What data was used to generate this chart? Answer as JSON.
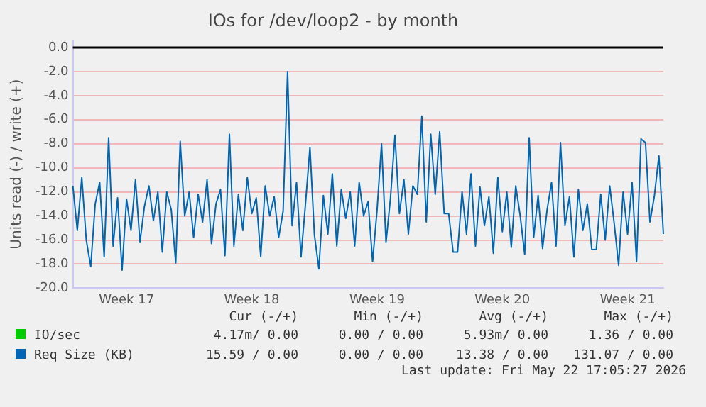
{
  "chart_data": {
    "type": "line",
    "title": "IOs for /dev/loop2 - by month",
    "ylabel": "Units read (-) / write (+)",
    "categories": [
      null,
      null,
      null,
      null,
      null,
      null,
      null,
      null,
      null,
      null,
      null,
      null,
      "Week 17",
      null,
      null,
      null,
      null,
      null,
      null,
      null,
      null,
      null,
      null,
      null,
      null,
      null,
      null,
      null,
      null,
      null,
      null,
      null,
      null,
      null,
      null,
      null,
      null,
      null,
      null,
      null,
      "Week 18",
      null,
      null,
      null,
      null,
      null,
      null,
      null,
      null,
      null,
      null,
      null,
      null,
      null,
      null,
      null,
      null,
      null,
      null,
      null,
      null,
      null,
      null,
      null,
      null,
      null,
      null,
      null,
      "Week 19",
      null,
      null,
      null,
      null,
      null,
      null,
      null,
      null,
      null,
      null,
      null,
      null,
      null,
      null,
      null,
      null,
      null,
      null,
      null,
      null,
      null,
      null,
      null,
      null,
      null,
      null,
      null,
      "Week 20",
      null,
      null,
      null,
      null,
      null,
      null,
      null,
      null,
      null,
      null,
      null,
      null,
      null,
      null,
      null,
      null,
      null,
      null,
      null,
      null,
      null,
      null,
      null,
      null,
      null,
      null,
      null,
      "Week 21",
      null,
      null,
      null,
      null,
      null,
      null,
      null,
      null
    ],
    "series": [
      {
        "name": "IO/sec",
        "color": "#00cc00",
        "values": [
          null,
          null,
          null,
          null,
          null,
          null,
          null,
          null,
          null,
          null,
          null,
          null,
          null,
          null,
          null,
          null,
          null,
          null,
          null,
          null,
          null,
          null,
          null,
          null,
          null,
          null,
          null,
          null,
          null,
          null,
          null,
          null,
          null,
          null,
          null,
          null,
          null,
          null,
          null,
          null,
          null,
          null,
          null,
          null,
          null,
          null,
          null,
          null,
          null,
          null,
          null,
          null,
          null,
          null,
          null,
          null,
          null,
          null,
          null,
          null,
          null,
          null,
          null,
          null,
          null,
          null,
          null,
          null,
          null,
          null,
          null,
          null,
          null,
          null,
          null,
          null,
          null,
          null,
          null,
          null,
          null,
          null,
          null,
          null,
          null,
          null,
          null,
          null,
          null,
          null,
          null,
          null,
          null,
          null,
          null,
          null,
          null,
          null,
          null,
          null,
          null,
          null,
          null,
          null,
          null,
          null,
          null,
          null,
          null,
          null,
          null,
          null,
          null,
          null,
          null,
          null,
          null,
          null,
          null,
          null,
          null,
          null,
          null,
          null,
          null,
          null,
          null,
          null,
          null,
          null,
          null,
          null,
          null
        ]
      },
      {
        "name": "Req Size (KB)",
        "color": "#0066b3",
        "values": [
          -11.5,
          -15.2,
          -10.8,
          -16,
          -18.2,
          -13,
          -11.2,
          -17.4,
          -7.5,
          -16.5,
          -12.5,
          -18.5,
          -12.6,
          -15.2,
          -11,
          -16.2,
          -13.2,
          -11.5,
          -14.4,
          -12,
          -17,
          -12,
          -13.5,
          -17.9,
          -7.8,
          -14,
          -12,
          -15.8,
          -12.2,
          -14.5,
          -11,
          -16.3,
          -13,
          -11.8,
          -17.3,
          -7.2,
          -16.5,
          -12.2,
          -15.2,
          -10.8,
          -13.8,
          -12.5,
          -17.4,
          -11.5,
          -14,
          -12.4,
          -15.8,
          -13.6,
          -2.0,
          -14.8,
          -11.2,
          -17.4,
          -13,
          -8.3,
          -15.6,
          -18.4,
          -12.3,
          -15.5,
          -10.5,
          -16.5,
          -11.8,
          -14.2,
          -12,
          -16.5,
          -11.2,
          -14,
          -12.8,
          -17.8,
          -13.5,
          -8,
          -16.2,
          -12.5,
          -7.3,
          -13.8,
          -11,
          -15.5,
          -11.5,
          -12.2,
          -5.7,
          -14.5,
          -7.2,
          -12.2,
          -7,
          -13.8,
          -13.8,
          -17,
          -17,
          -12,
          -15.5,
          -10.5,
          -16.5,
          -11.6,
          -14.8,
          -12.4,
          -17.1,
          -10.8,
          -15.3,
          -12,
          -16.6,
          -11.5,
          -14,
          -17.2,
          -7.5,
          -15.8,
          -12.3,
          -16.7,
          -13.5,
          -11.2,
          -16.5,
          -7.9,
          -14.8,
          -12.4,
          -17.4,
          -11.8,
          -15.2,
          -13,
          -16.8,
          -16.8,
          -12.2,
          -16,
          -11.5,
          -14.6,
          -18.1,
          -12,
          -15.5,
          -11.2,
          -17.8,
          -7.6,
          -7.9,
          -14.5,
          -12.3,
          -9,
          -15.5
        ]
      }
    ],
    "ylim": [
      -20,
      0.6
    ],
    "yticks": [
      {
        "value": 0,
        "label": "0.0"
      },
      {
        "value": -2,
        "label": "-2.0"
      },
      {
        "value": -4,
        "label": "-4.0"
      },
      {
        "value": -6,
        "label": "-6.0"
      },
      {
        "value": -8,
        "label": "-8.0"
      },
      {
        "value": -10,
        "label": "-10.0"
      },
      {
        "value": -12,
        "label": "-12.0"
      },
      {
        "value": -14,
        "label": "-14.0"
      },
      {
        "value": -16,
        "label": "-16.0"
      },
      {
        "value": -18,
        "label": "-18.0"
      },
      {
        "value": -20,
        "label": "-20.0"
      }
    ],
    "ref_lines": [
      {
        "axis": "y",
        "value": 0,
        "color": "#000000"
      }
    ],
    "grid": "y",
    "legend": "bottom",
    "marker": "none",
    "line_style": "solid",
    "annotations": [
      "Cur (-/+)",
      "Min (-/+)",
      "Avg (-/+)",
      "Max (-/+)",
      "4.17m/ 0.00",
      "0.00 / 0.00",
      "5.93m/ 0.00",
      "1.36 / 0.00",
      "15.59 / 0.00",
      "0.00 / 0.00",
      "13.38 / 0.00",
      "131.07 / 0.00",
      "Last update: Fri May 22 17:05:27 2026"
    ]
  }
}
